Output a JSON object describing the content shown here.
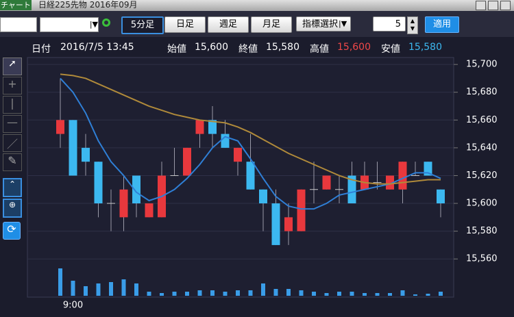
{
  "window": {
    "title": "チャート",
    "subtitle": "日経225先物 2016年09月"
  },
  "toolbar": {
    "periods": [
      "5分足",
      "日足",
      "週足",
      "月足"
    ],
    "indicator": "指標選択",
    "count": "5",
    "apply": "適用"
  },
  "info": {
    "date_label": "日付",
    "date": "2016/7/5 13:45",
    "open_label": "始値",
    "open": "15,600",
    "close_label": "終値",
    "close": "15,580",
    "high_label": "高値",
    "high": "15,600",
    "low_label": "安値",
    "low": "15,580"
  },
  "chart_data": {
    "type": "candlestick",
    "categories": [
      null,
      "9:00",
      null,
      null,
      null,
      null,
      null,
      null,
      null,
      null,
      null,
      null,
      null,
      null,
      null,
      null,
      null,
      null,
      null,
      null,
      null,
      null,
      null,
      null,
      null,
      null,
      null,
      null,
      null,
      null,
      null
    ],
    "open": [
      15650,
      15660,
      15640,
      15630,
      15600,
      15590,
      15620,
      15590,
      15590,
      15620,
      15620,
      15650,
      15660,
      15650,
      15630,
      15630,
      15610,
      15600,
      15580,
      15580,
      15610,
      15610,
      15610,
      15620,
      15610,
      15615,
      15610,
      15610,
      15620,
      15630,
      15610
    ],
    "close": [
      15660,
      15620,
      15630,
      15600,
      15600,
      15610,
      15600,
      15600,
      15620,
      15620,
      15640,
      15660,
      15650,
      15640,
      15640,
      15610,
      15600,
      15570,
      15590,
      15610,
      15610,
      15620,
      15610,
      15600,
      15620,
      15615,
      15620,
      15630,
      15620,
      15620,
      15600
    ],
    "high": [
      15690,
      15660,
      15650,
      15630,
      15610,
      15620,
      15620,
      15600,
      15630,
      15640,
      15640,
      15660,
      15670,
      15660,
      15640,
      15650,
      15610,
      15610,
      15600,
      15610,
      15630,
      15620,
      15620,
      15630,
      15630,
      15630,
      15620,
      15630,
      15630,
      15630,
      15610
    ],
    "low": [
      15640,
      15620,
      15620,
      15590,
      15580,
      15580,
      15590,
      15590,
      15590,
      15620,
      15620,
      15640,
      15640,
      15640,
      15620,
      15610,
      15580,
      15570,
      15570,
      15580,
      15600,
      15610,
      15600,
      15600,
      15610,
      15610,
      15610,
      15600,
      15620,
      15620,
      15590
    ],
    "volume": [
      40,
      22,
      14,
      18,
      20,
      24,
      18,
      6,
      4,
      6,
      6,
      8,
      8,
      6,
      8,
      8,
      18,
      10,
      10,
      8,
      6,
      4,
      6,
      6,
      4,
      4,
      4,
      8,
      2,
      3,
      6
    ],
    "ma_short": [
      15690,
      15680,
      15665,
      15645,
      15630,
      15620,
      15608,
      15602,
      15605,
      15610,
      15618,
      15628,
      15640,
      15648,
      15645,
      15632,
      15618,
      15605,
      15598,
      15596,
      15596,
      15600,
      15606,
      15608,
      15610,
      15612,
      15614,
      15618,
      15622,
      15622,
      15618
    ],
    "ma_long": [
      15693,
      15692,
      15690,
      15686,
      15682,
      15678,
      15674,
      15670,
      15667,
      15664,
      15662,
      15660,
      15659,
      15658,
      15655,
      15651,
      15646,
      15641,
      15636,
      15632,
      15628,
      15624,
      15620,
      15617,
      15615,
      15614,
      15614,
      15615,
      15616,
      15617,
      15617
    ],
    "up_color": "#e8383d",
    "down_color": "#3cb8f0",
    "ma_short_color": "#2f7fd6",
    "ma_long_color": "#b08a3a",
    "volume_color": "#3a9de8",
    "ylim": [
      15533,
      15705
    ],
    "yticks": [
      {
        "value": 15560,
        "label": "15,560"
      },
      {
        "value": 15580,
        "label": "15,580"
      },
      {
        "value": 15600,
        "label": "15,600"
      },
      {
        "value": 15620,
        "label": "15,620"
      },
      {
        "value": 15640,
        "label": "15,640"
      },
      {
        "value": 15660,
        "label": "15,660"
      },
      {
        "value": 15680,
        "label": "15,680"
      },
      {
        "value": 15700,
        "label": "15,700"
      }
    ],
    "grid": true
  }
}
